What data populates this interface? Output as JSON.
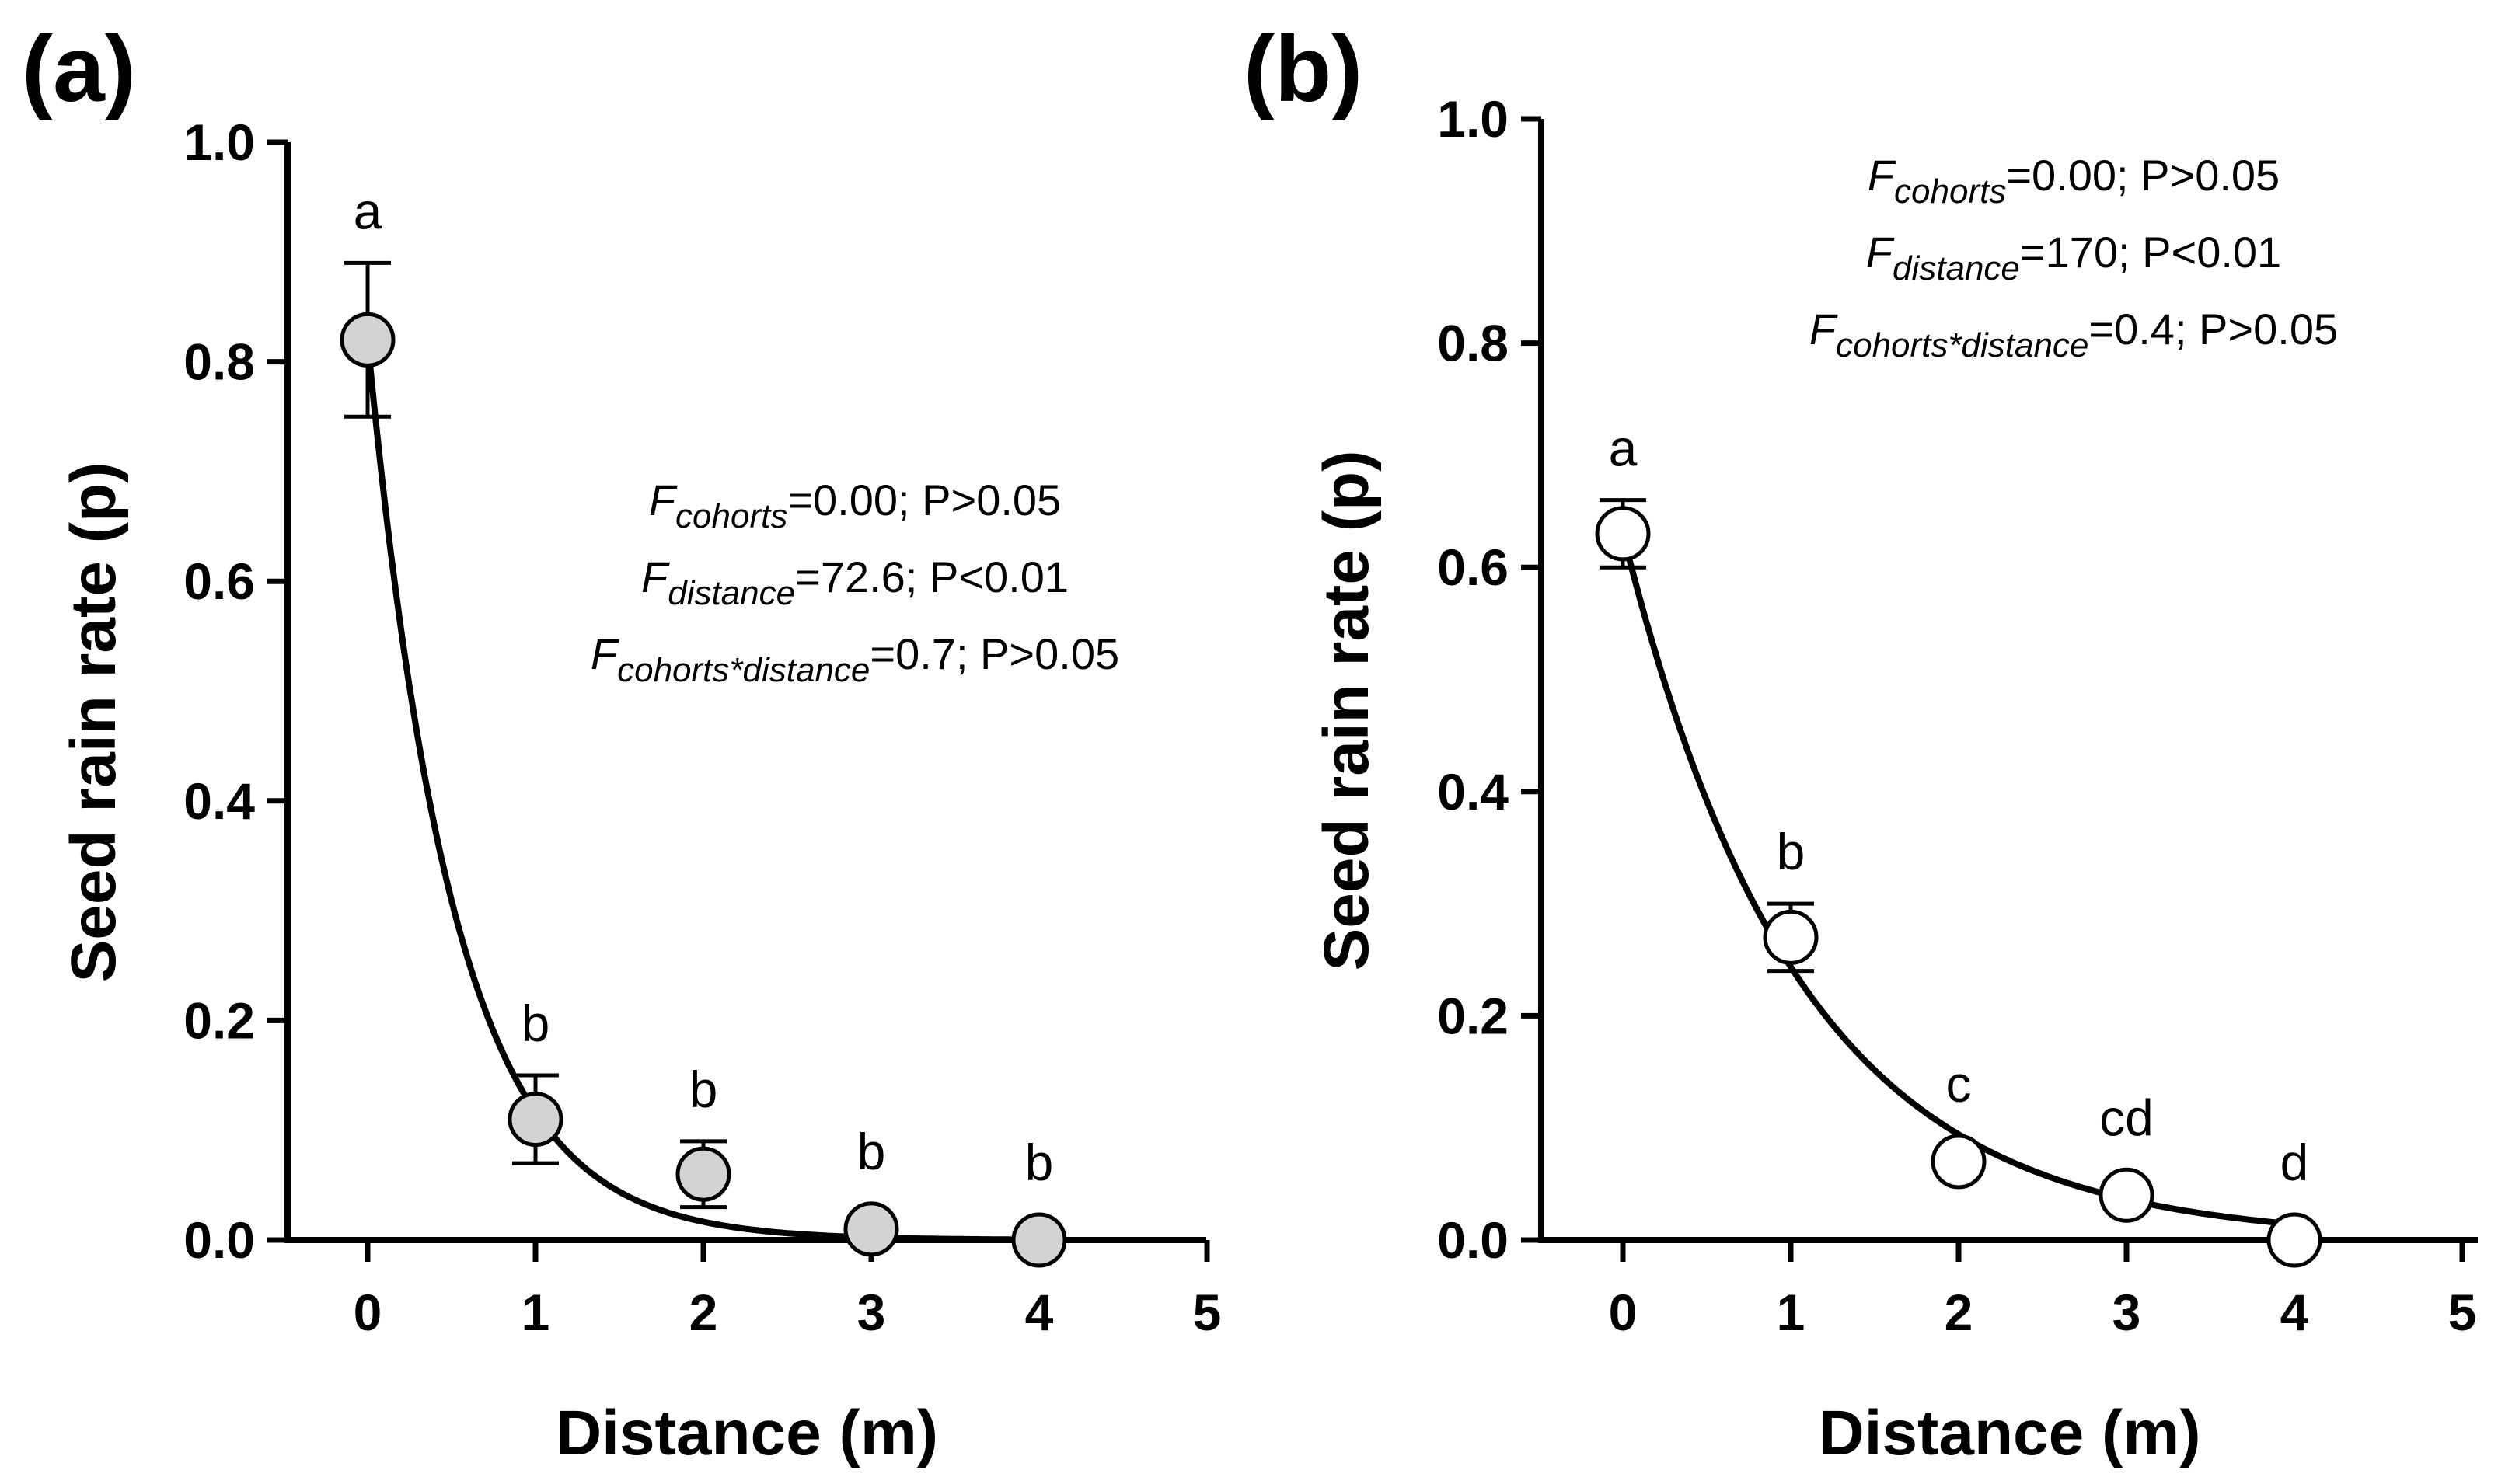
{
  "chart_data": [
    {
      "panel": "(a)",
      "type": "scatter",
      "xlabel": "Distance (m)",
      "ylabel": "Seed rain rate (p)",
      "xlim": [
        -0.5,
        5
      ],
      "ylim": [
        0,
        1.0
      ],
      "xticks": [
        "0",
        "1",
        "2",
        "3",
        "4",
        "5"
      ],
      "yticks": [
        "0.0",
        "0.2",
        "0.4",
        "0.6",
        "0.8",
        "1.0"
      ],
      "marker_fill": "#d3d3d3",
      "series": [
        {
          "name": "Seed rain rate",
          "x": [
            0,
            1,
            2,
            3,
            4
          ],
          "y": [
            0.82,
            0.11,
            0.06,
            0.01,
            0.0
          ],
          "err_upper": [
            0.89,
            0.15,
            0.09,
            0.01,
            0.0
          ],
          "err_lower": [
            0.75,
            0.07,
            0.03,
            0.01,
            0.0
          ],
          "letters": [
            "a",
            "b",
            "b",
            "b",
            "b"
          ]
        }
      ],
      "fit": {
        "type": "exponential",
        "a": 0.82,
        "k": 1.95,
        "x_range": [
          0,
          4
        ]
      },
      "stats": [
        {
          "f": "F",
          "sub": "cohorts",
          "rest": "=0.00; P>0.05"
        },
        {
          "f": "F",
          "sub": "distance",
          "rest": "=72.6; P<0.01"
        },
        {
          "f": "F",
          "sub": "cohorts*distance",
          "rest": "=0.7; P>0.05"
        }
      ]
    },
    {
      "panel": "(b)",
      "type": "scatter",
      "xlabel": "Distance (m)",
      "ylabel": "Seed rain rate (p)",
      "xlim": [
        -0.5,
        5
      ],
      "ylim": [
        0,
        1.0
      ],
      "xticks": [
        "0",
        "1",
        "2",
        "3",
        "4",
        "5"
      ],
      "yticks": [
        "0.0",
        "0.2",
        "0.4",
        "0.6",
        "0.8",
        "1.0"
      ],
      "marker_fill": "#ffffff",
      "series": [
        {
          "name": "Seed rain rate",
          "x": [
            0,
            1,
            2,
            3,
            4
          ],
          "y": [
            0.63,
            0.27,
            0.07,
            0.04,
            0.0
          ],
          "err_upper": [
            0.66,
            0.3,
            0.07,
            0.04,
            0.0
          ],
          "err_lower": [
            0.6,
            0.24,
            0.07,
            0.04,
            0.0
          ],
          "letters": [
            "a",
            "b",
            "c",
            "cd",
            "d"
          ]
        }
      ],
      "fit": {
        "type": "exponential",
        "a": 0.63,
        "k": 0.95,
        "x_range": [
          0,
          4
        ]
      },
      "stats": [
        {
          "f": "F",
          "sub": "cohorts",
          "rest": "=0.00; P>0.05"
        },
        {
          "f": "F",
          "sub": "distance",
          "rest": "=170; P<0.01"
        },
        {
          "f": "F",
          "sub": "cohorts*distance",
          "rest": "=0.4; P>0.05"
        }
      ]
    }
  ]
}
